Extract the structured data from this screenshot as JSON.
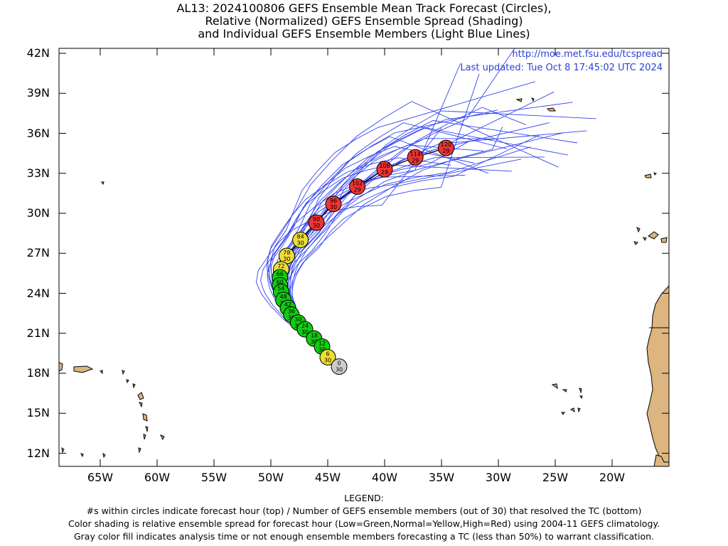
{
  "title": {
    "line1": "AL13: 2024100806 GEFS Ensemble Mean Track Forecast (Circles),",
    "line2": "Relative (Normalized) GEFS Ensemble Spread (Shading)",
    "line3": "and Individual GEFS Ensemble Members (Light Blue Lines)"
  },
  "header_info": {
    "url": "http://moe.met.fsu.edu/tcspread",
    "updated": "Last updated: Tue Oct 8 17:45:02 UTC 2024"
  },
  "axes": {
    "lat_labels": [
      "42N",
      "39N",
      "36N",
      "33N",
      "30N",
      "27N",
      "24N",
      "21N",
      "18N",
      "15N",
      "12N"
    ],
    "lon_labels": [
      "65W",
      "60W",
      "55W",
      "50W",
      "45W",
      "40W",
      "35W",
      "30W",
      "25W",
      "20W"
    ]
  },
  "legend": {
    "heading": "LEGEND:",
    "line1": "#s within circles indicate forecast hour (top) / Number of GEFS ensemble members (out of 30) that resolved the TC (bottom)",
    "line2": "Color shading is relative ensemble spread for forecast hour (Low=Green,Normal=Yellow,High=Red) using 2004-11 GEFS climatology.",
    "line3": "Gray color fill indicates analysis time or not enough ensemble members forecasting a TC (less than 50%) to warrant classification."
  },
  "colors": {
    "low": "#11cc11",
    "normal": "#eedd33",
    "high": "#ee3333",
    "analysis": "#cccccc",
    "member_line": "#3344ee",
    "land": "#ddb580"
  },
  "track_points": [
    {
      "hour": "0",
      "members": "30",
      "lat": 18.5,
      "lon": -44.0,
      "spread": "analysis"
    },
    {
      "hour": "6",
      "members": "30",
      "lat": 19.2,
      "lon": -45.0,
      "spread": "normal"
    },
    {
      "hour": "12",
      "members": "30",
      "lat": 20.0,
      "lon": -45.5,
      "spread": "low"
    },
    {
      "hour": "18",
      "members": "30",
      "lat": 20.6,
      "lon": -46.2,
      "spread": "low"
    },
    {
      "hour": "24",
      "members": "30",
      "lat": 21.3,
      "lon": -47.0,
      "spread": "low"
    },
    {
      "hour": "30",
      "members": "30",
      "lat": 21.8,
      "lon": -47.6,
      "spread": "low"
    },
    {
      "hour": "36",
      "members": "30",
      "lat": 22.4,
      "lon": -48.2,
      "spread": "low"
    },
    {
      "hour": "42",
      "members": "30",
      "lat": 22.9,
      "lon": -48.5,
      "spread": "low"
    },
    {
      "hour": "48",
      "members": "30",
      "lat": 23.5,
      "lon": -48.9,
      "spread": "low"
    },
    {
      "hour": "54",
      "members": "30",
      "lat": 24.1,
      "lon": -49.1,
      "spread": "low"
    },
    {
      "hour": "60",
      "members": "30",
      "lat": 24.6,
      "lon": -49.2,
      "spread": "low"
    },
    {
      "hour": "66",
      "members": "30",
      "lat": 25.2,
      "lon": -49.2,
      "spread": "low"
    },
    {
      "hour": "72",
      "members": "30",
      "lat": 25.8,
      "lon": -49.1,
      "spread": "normal"
    },
    {
      "hour": "78",
      "members": "30",
      "lat": 26.8,
      "lon": -48.6,
      "spread": "normal"
    },
    {
      "hour": "84",
      "members": "30",
      "lat": 28.0,
      "lon": -47.4,
      "spread": "normal"
    },
    {
      "hour": "90",
      "members": "30",
      "lat": 29.3,
      "lon": -46.0,
      "spread": "high"
    },
    {
      "hour": "96",
      "members": "30",
      "lat": 30.7,
      "lon": -44.5,
      "spread": "high"
    },
    {
      "hour": "102",
      "members": "29",
      "lat": 32.0,
      "lon": -42.4,
      "spread": "high"
    },
    {
      "hour": "108",
      "members": "29",
      "lat": 33.3,
      "lon": -40.0,
      "spread": "high"
    },
    {
      "hour": "114",
      "members": "29",
      "lat": 34.2,
      "lon": -37.3,
      "spread": "high"
    },
    {
      "hour": "120",
      "members": "29",
      "lat": 34.9,
      "lon": -34.6,
      "spread": "high"
    }
  ]
}
